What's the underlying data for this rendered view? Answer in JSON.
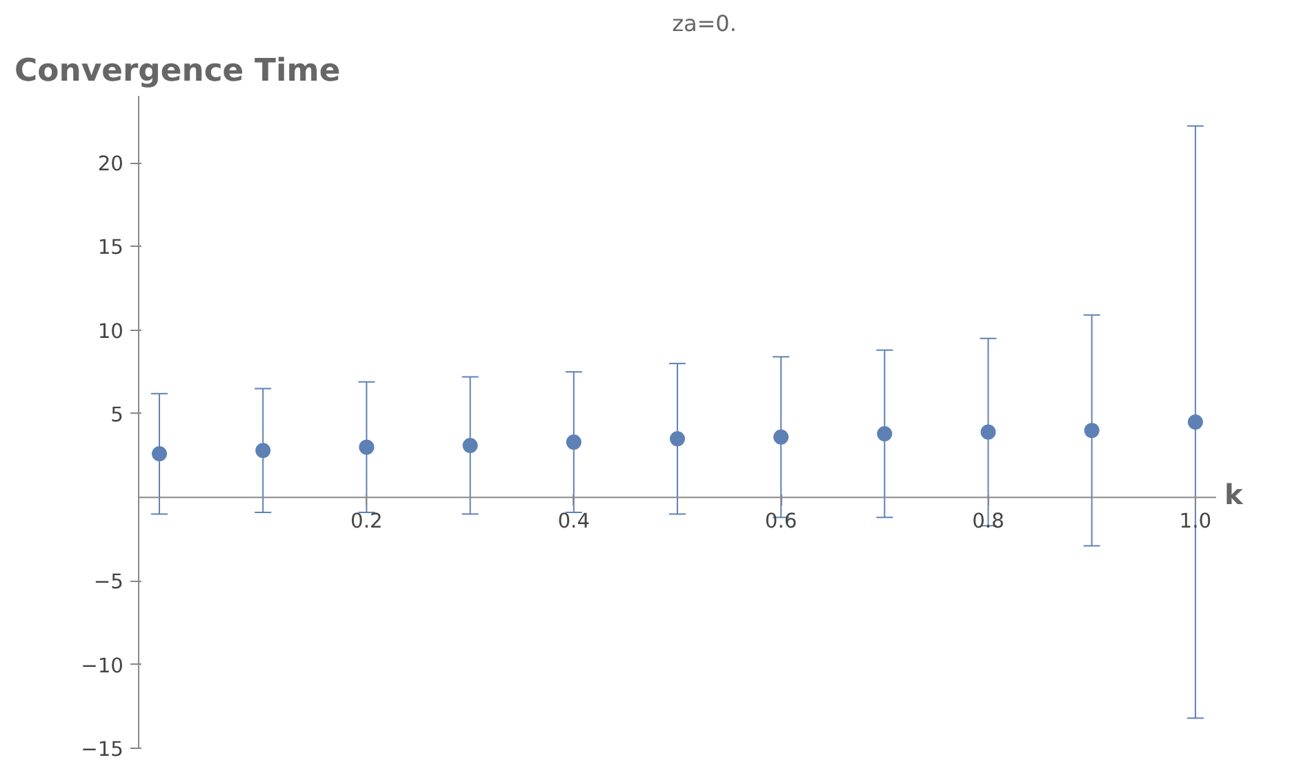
{
  "chart_data": {
    "type": "scatter",
    "title": "za=0.",
    "ylabel": "Convergence Time",
    "xlabel": "k",
    "x": [
      0,
      0.1,
      0.2,
      0.3,
      0.4,
      0.5,
      0.6,
      0.7,
      0.8,
      0.9,
      1.0
    ],
    "series": [
      {
        "color": "#5e81b5",
        "values": [
          2.6,
          2.8,
          3.0,
          3.1,
          3.3,
          3.5,
          3.6,
          3.8,
          3.9,
          4.0,
          4.5
        ],
        "errors": [
          3.6,
          3.7,
          3.9,
          4.1,
          4.2,
          4.5,
          4.8,
          5.0,
          5.6,
          6.9,
          17.7
        ]
      }
    ],
    "xlim": [
      -0.02,
      1.02
    ],
    "ylim": [
      -15,
      24
    ],
    "xticks": [
      0.2,
      0.4,
      0.6,
      0.8,
      {
        "value": 1.0,
        "label": "1.0"
      }
    ],
    "yticks": [
      {
        "value": -15,
        "label": "−15"
      },
      {
        "value": -10,
        "label": "−10"
      },
      {
        "value": -5,
        "label": "−5"
      },
      5,
      10,
      15,
      20
    ],
    "marker": "circle",
    "grid": false
  }
}
